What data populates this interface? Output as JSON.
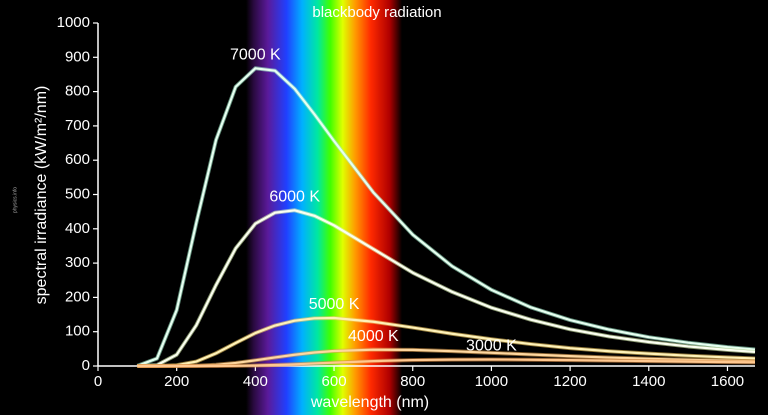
{
  "chart_data": {
    "type": "line",
    "title": "blackbody radiation",
    "x_label": "wavelength (nm)",
    "y_label": "spectral irradiance (kW/m²/nm)",
    "credit": "physics.info",
    "x": [
      100,
      150,
      200,
      250,
      300,
      350,
      400,
      450,
      500,
      550,
      600,
      700,
      800,
      900,
      1000,
      1100,
      1200,
      1300,
      1400,
      1500,
      1600,
      1670
    ],
    "series": [
      {
        "name": "7000 K",
        "color": "#e6fff0",
        "glow": "#9fe8c8",
        "values": [
          0.2,
          22,
          163,
          418,
          659,
          814,
          868,
          861,
          808,
          734,
          656,
          506,
          383,
          291,
          222,
          171,
          134,
          106,
          84,
          68,
          55,
          48
        ]
      },
      {
        "name": "6000 K",
        "color": "#fbfff0",
        "glow": "#d8f0b0",
        "values": [
          0,
          2.5,
          33,
          119,
          236,
          343,
          415,
          447,
          454,
          438,
          410,
          341,
          272,
          216,
          170,
          135,
          107,
          86,
          70,
          57,
          47,
          41
        ]
      },
      {
        "name": "5000 K",
        "color": "#fff2b8",
        "glow": "#f0c860",
        "values": [
          0,
          0.1,
          2.3,
          13,
          37,
          67,
          96,
          118,
          132,
          139,
          140,
          129,
          112,
          94,
          78,
          64,
          52,
          43,
          36,
          30,
          25,
          22
        ]
      },
      {
        "name": "4000 K",
        "color": "#ffd8a0",
        "glow": "#e0a050",
        "values": [
          0,
          0,
          0.1,
          0.8,
          3.5,
          8.9,
          16.6,
          24.9,
          32.8,
          39.3,
          43.7,
          47.6,
          46.9,
          43.2,
          38.4,
          33.5,
          28.8,
          24.6,
          21.0,
          18.0,
          15.4,
          13.7
        ]
      },
      {
        "name": "3000 K",
        "color": "#ffc890",
        "glow": "#d88840",
        "values": [
          0,
          0,
          0,
          0,
          0.1,
          0.5,
          1.4,
          2.9,
          5.0,
          7.4,
          9.9,
          14.3,
          17.3,
          18.7,
          19.0,
          18.3,
          17.1,
          15.7,
          14.2,
          12.8,
          11.4,
          10.5
        ]
      }
    ],
    "xlim": [
      0,
      1670
    ],
    "xticks": [
      0,
      200,
      400,
      600,
      800,
      1000,
      1200,
      1400,
      1600
    ],
    "ylim": [
      0,
      1000
    ],
    "yticks": [
      0,
      100,
      200,
      300,
      400,
      500,
      600,
      700,
      800,
      900,
      1000
    ],
    "grid": false
  }
}
